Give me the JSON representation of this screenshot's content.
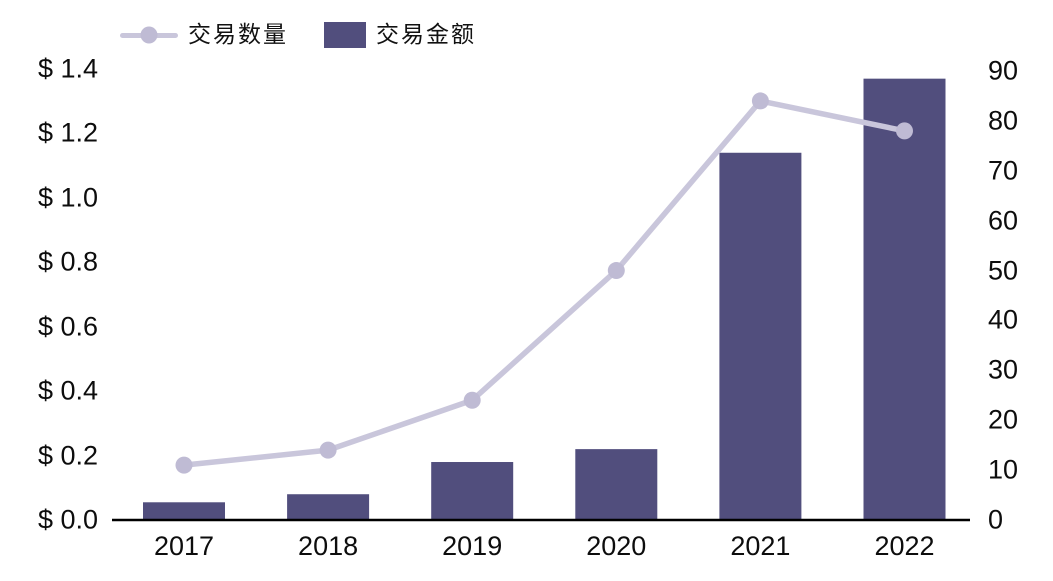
{
  "legend": {
    "items": [
      {
        "label": "交易数量",
        "marker": "line-with-dot"
      },
      {
        "label": "交易金额",
        "marker": "filled-square"
      }
    ]
  },
  "chart_data": {
    "type": "combo",
    "title": "",
    "categories": [
      "2017",
      "2018",
      "2019",
      "2020",
      "2021",
      "2022"
    ],
    "series": [
      {
        "name": "交易数量",
        "type": "line",
        "axis": "right",
        "values": [
          11,
          14,
          24,
          50,
          84,
          78
        ],
        "color": "#c9c6db",
        "marker_color": "#bfbbd4"
      },
      {
        "name": "交易金额",
        "type": "bar",
        "axis": "left",
        "values": [
          0.055,
          0.08,
          0.18,
          0.22,
          1.14,
          1.37
        ],
        "color": "#514e7d"
      }
    ],
    "left_axis": {
      "tick_labels": [
        "$ 0.0",
        "$ 0.2",
        "$ 0.4",
        "$ 0.6",
        "$ 0.8",
        "$ 1.0",
        "$ 1.2",
        "$ 1.4"
      ],
      "tick_values": [
        0.0,
        0.2,
        0.4,
        0.6,
        0.8,
        1.0,
        1.2,
        1.4
      ],
      "min": 0,
      "max": 1.4,
      "step": 0.2
    },
    "right_axis": {
      "tick_labels": [
        "0",
        "10",
        "20",
        "30",
        "40",
        "50",
        "60",
        "70",
        "80",
        "90"
      ],
      "tick_values": [
        0,
        10,
        20,
        30,
        40,
        50,
        60,
        70,
        80,
        90
      ],
      "min": 0,
      "max": 90,
      "step": 10
    },
    "grid": false,
    "legend_position": "top-left",
    "colors": {
      "axis_line": "#000000",
      "text": "#0d0d0d",
      "background": "#ffffff"
    }
  }
}
